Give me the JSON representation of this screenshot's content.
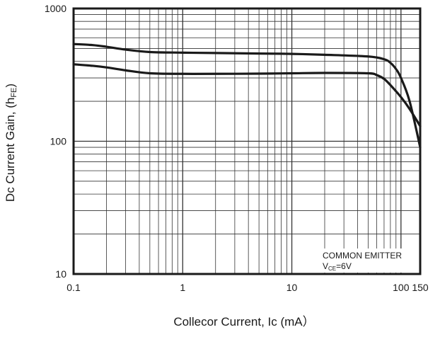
{
  "chart_data": {
    "type": "line",
    "title": "",
    "xlabel": "Collecor Current, Ic (mA）",
    "ylabel_main": "Dc Current Gain, (h",
    "ylabel_sub": "FE",
    "ylabel_close": ")",
    "x_scale": "log",
    "y_scale": "log",
    "xlim": [
      0.1,
      150
    ],
    "ylim": [
      10,
      1000
    ],
    "x_ticks": [
      {
        "value": 0.1,
        "label": "0.1"
      },
      {
        "value": 1,
        "label": "1"
      },
      {
        "value": 10,
        "label": "10"
      },
      {
        "value": 100,
        "label": "100"
      },
      {
        "value": 150,
        "label": "150"
      }
    ],
    "y_ticks": [
      {
        "value": 10,
        "label": "10"
      },
      {
        "value": 100,
        "label": "100"
      },
      {
        "value": 1000,
        "label": "1000"
      }
    ],
    "grid": true,
    "annotation": {
      "line1": "COMMON EMITTER",
      "line2_prefix": "V",
      "line2_sub": "CE",
      "line2_suffix": "=6V",
      "placement": "bottom-right"
    },
    "series": [
      {
        "x": [
          0.1,
          0.15,
          0.2,
          0.3,
          0.5,
          1,
          2,
          5,
          10,
          20,
          50,
          70,
          80,
          90,
          100,
          120,
          150
        ],
        "y": [
          540,
          530,
          515,
          490,
          470,
          465,
          462,
          458,
          455,
          448,
          435,
          415,
          390,
          350,
          300,
          200,
          90
        ]
      },
      {
        "x": [
          0.1,
          0.15,
          0.2,
          0.3,
          0.5,
          1,
          2,
          5,
          10,
          20,
          50,
          60,
          70,
          80,
          100,
          120,
          150
        ],
        "y": [
          380,
          370,
          360,
          342,
          325,
          322,
          322,
          323,
          325,
          327,
          325,
          315,
          295,
          265,
          215,
          175,
          130
        ]
      }
    ]
  },
  "colors": {
    "frame": "#1a1a1a",
    "grid": "#333333",
    "line": "#1a1a1a",
    "background": "#ffffff"
  }
}
